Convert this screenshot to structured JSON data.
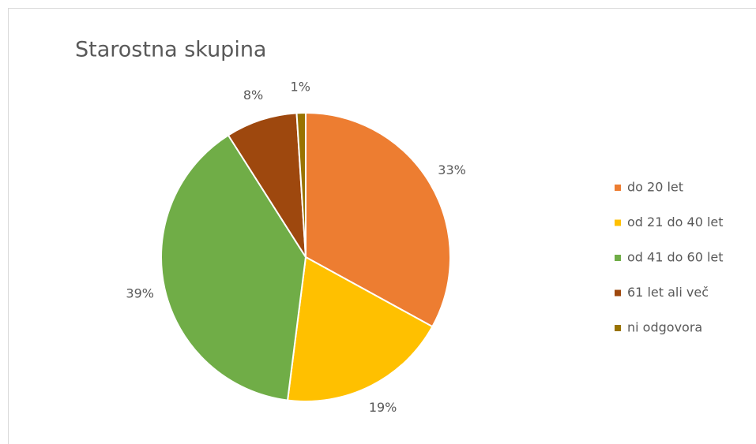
{
  "chart_data": {
    "type": "pie",
    "title": "Starostna skupina",
    "categories": [
      "do 20 let",
      "od 21 do 40 let",
      "od 41 do 60 let",
      "61 let ali več",
      "ni odgovora"
    ],
    "values": [
      33,
      19,
      39,
      8,
      1
    ],
    "value_labels": [
      "33%",
      "19%",
      "39%",
      "8%",
      "1%"
    ],
    "colors": [
      "#ed7d31",
      "#ffc000",
      "#70ad47",
      "#9e480e",
      "#997300"
    ],
    "legend": "right"
  }
}
